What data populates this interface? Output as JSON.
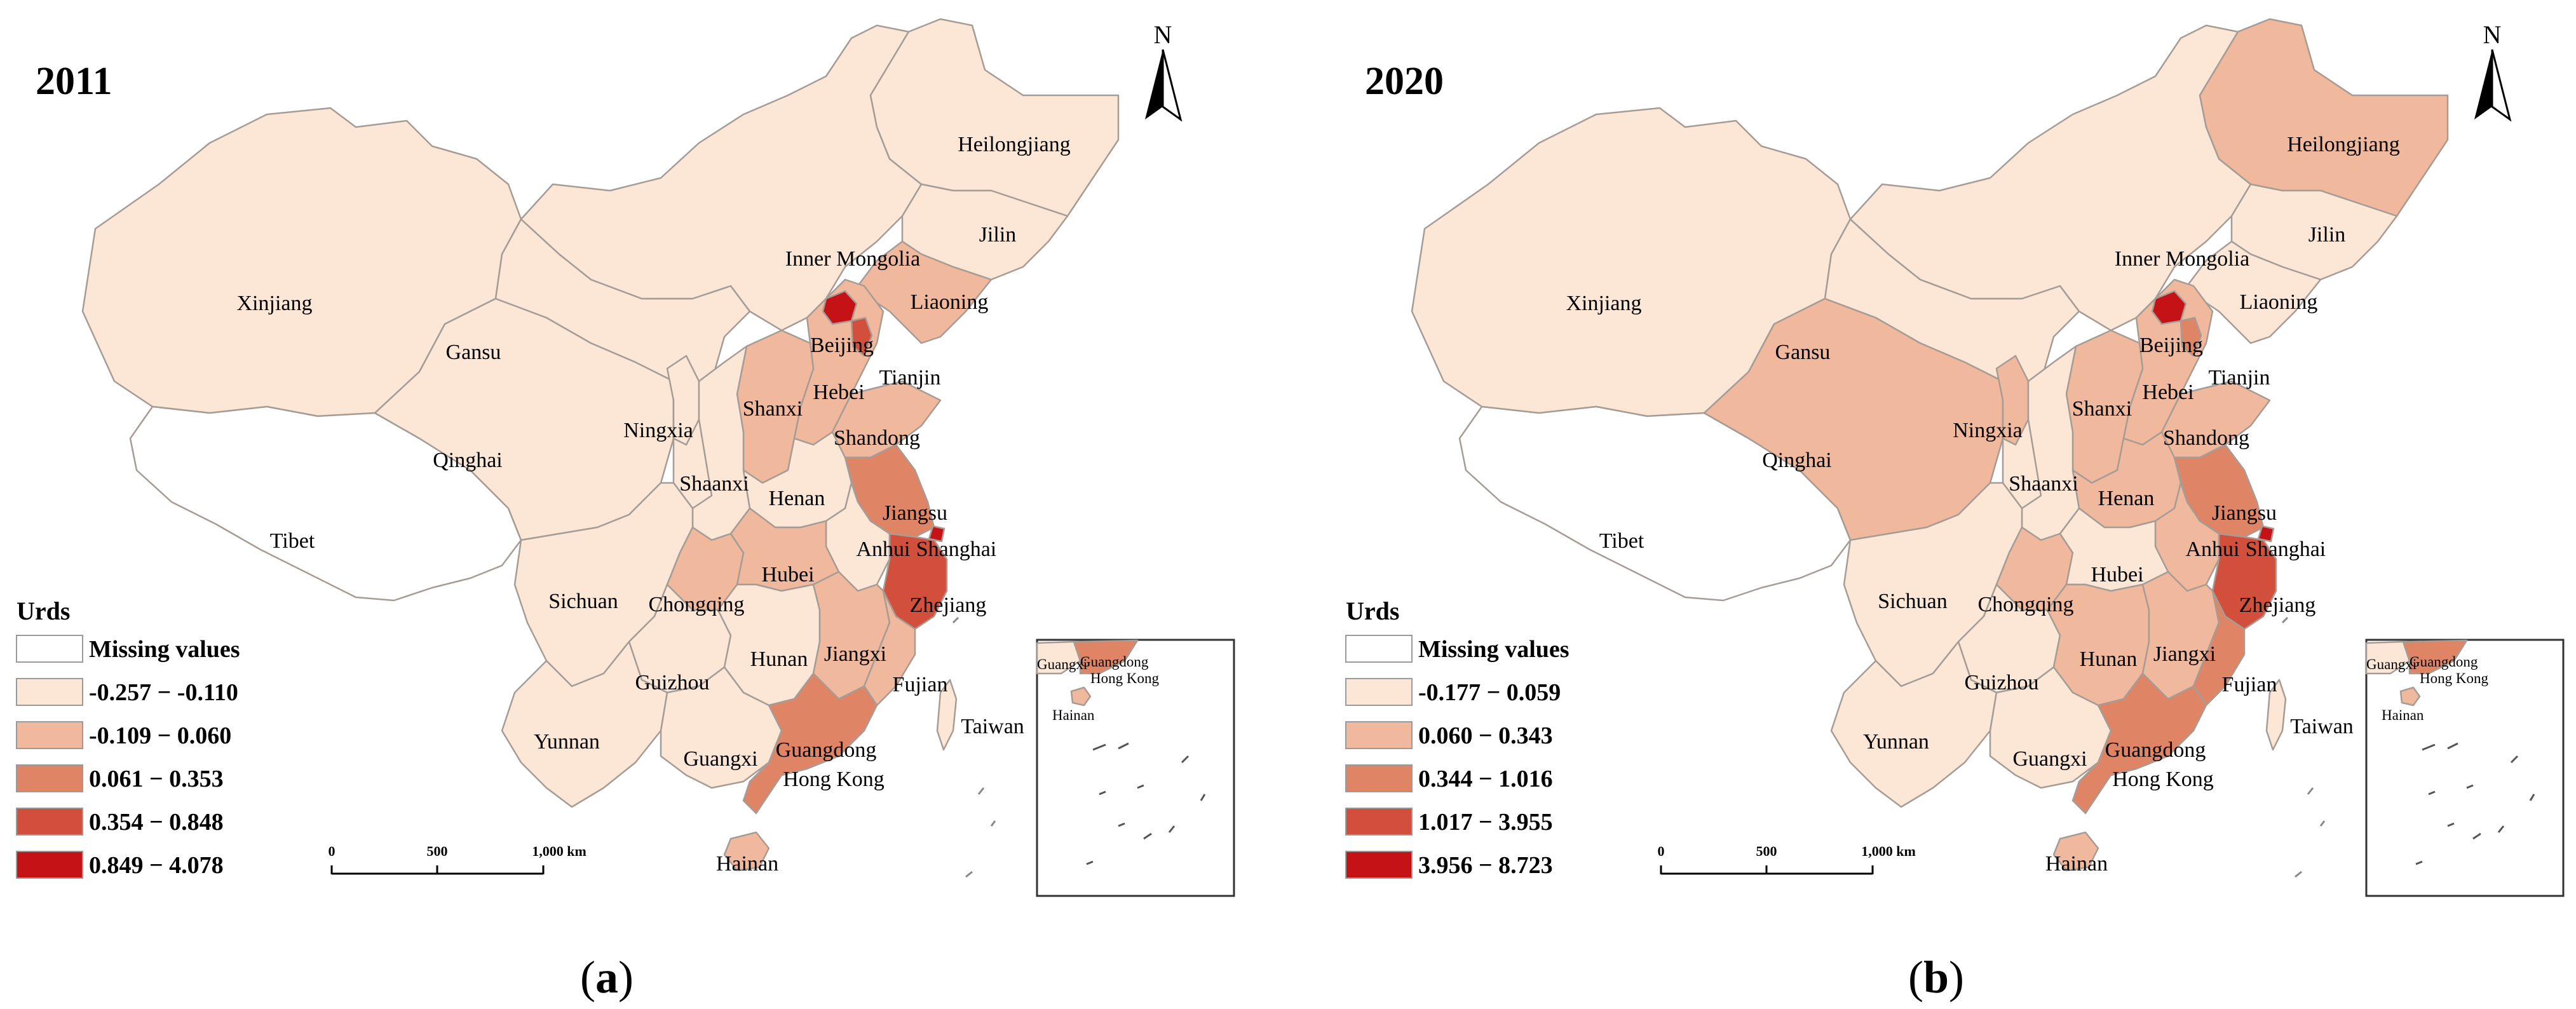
{
  "colors": {
    "missing": "#ffffff",
    "class1": "#fce6d6",
    "class2": "#f0b89c",
    "class3": "#e08466",
    "class4": "#d24f3c",
    "class5": "#c41217",
    "border": "#a69c96",
    "outline": "#9a9a9a"
  },
  "panels": [
    {
      "year": "2011",
      "caption_letter": "a",
      "legend": {
        "title": "Urds",
        "items": [
          {
            "label": "Missing values",
            "color": "missing"
          },
          {
            "label": "-0.257 − -0.110",
            "color": "class1"
          },
          {
            "label": "-0.109 − 0.060",
            "color": "class2"
          },
          {
            "label": "0.061 − 0.353",
            "color": "class3"
          },
          {
            "label": "0.354 − 0.848",
            "color": "class4"
          },
          {
            "label": "0.849 − 4.078",
            "color": "class5"
          }
        ]
      },
      "scale": {
        "t0": "0",
        "t1": "500",
        "t2": "1,000 km"
      },
      "provinces": {
        "xinjiang": "class1",
        "tibet": "missing",
        "qinghai": "class1",
        "gansu": "class1",
        "inner_mongolia": "class1",
        "heilongjiang": "class1",
        "jilin": "class1",
        "liaoning": "class2",
        "beijing": "class5",
        "tianjin": "class4",
        "hebei": "class2",
        "shanxi": "class2",
        "shandong": "class2",
        "ningxia": "class1",
        "shaanxi": "class1",
        "henan": "class1",
        "jiangsu": "class3",
        "anhui": "class1",
        "shanghai": "class5",
        "sichuan": "class1",
        "chongqing": "class2",
        "hubei": "class2",
        "zhejiang": "class4",
        "guizhou": "class1",
        "hunan": "class1",
        "jiangxi": "class2",
        "fujian": "class2",
        "yunnan": "class1",
        "guangxi": "class1",
        "guangdong": "class3",
        "hainan": "class2",
        "taiwan": "class1",
        "inset_guangdong": "class3",
        "inset_guangxi": "class1",
        "inset_hainan": "class2"
      }
    },
    {
      "year": "2020",
      "caption_letter": "b",
      "legend": {
        "title": "Urds",
        "items": [
          {
            "label": "Missing values",
            "color": "missing"
          },
          {
            "label": "-0.177 − 0.059",
            "color": "class1"
          },
          {
            "label": "0.060 − 0.343",
            "color": "class2"
          },
          {
            "label": "0.344 − 1.016",
            "color": "class3"
          },
          {
            "label": "1.017 − 3.955",
            "color": "class4"
          },
          {
            "label": "3.956 − 8.723",
            "color": "class5"
          }
        ]
      },
      "scale": {
        "t0": "0",
        "t1": "500",
        "t2": "1,000 km"
      },
      "provinces": {
        "xinjiang": "class1",
        "tibet": "missing",
        "qinghai": "class2",
        "gansu": "class1",
        "inner_mongolia": "class1",
        "heilongjiang": "class2",
        "jilin": "class1",
        "liaoning": "class1",
        "beijing": "class5",
        "tianjin": "class3",
        "hebei": "class2",
        "shanxi": "class2",
        "shandong": "class2",
        "ningxia": "class2",
        "shaanxi": "class1",
        "henan": "class2",
        "jiangsu": "class3",
        "anhui": "class2",
        "shanghai": "class5",
        "sichuan": "class1",
        "chongqing": "class2",
        "hubei": "class1",
        "zhejiang": "class4",
        "guizhou": "class1",
        "hunan": "class2",
        "jiangxi": "class2",
        "fujian": "class3",
        "yunnan": "class1",
        "guangxi": "class1",
        "guangdong": "class3",
        "hainan": "class2",
        "taiwan": "class1",
        "inset_guangdong": "class3",
        "inset_guangxi": "class1",
        "inset_hainan": "class2"
      }
    }
  ],
  "north_label": "N",
  "region_names": {
    "xinjiang": "Xinjiang",
    "tibet": "Tibet",
    "qinghai": "Qinghai",
    "gansu": "Gansu",
    "inner_mongolia": "Inner Mongolia",
    "heilongjiang": "Heilongjiang",
    "jilin": "Jilin",
    "liaoning": "Liaoning",
    "beijing": "Beijing",
    "tianjin": "Tianjin",
    "hebei": "Hebei",
    "shanxi": "Shanxi",
    "shandong": "Shandong",
    "ningxia": "Ningxia",
    "shaanxi": "Shaanxi",
    "henan": "Henan",
    "jiangsu": "Jiangsu",
    "anhui": "Anhui",
    "shanghai": "Shanghai",
    "sichuan": "Sichuan",
    "chongqing": "Chongqing",
    "hubei": "Hubei",
    "zhejiang": "Zhejiang",
    "guizhou": "Guizhou",
    "hunan": "Hunan",
    "jiangxi": "Jiangxi",
    "fujian": "Fujian",
    "yunnan": "Yunnan",
    "guangxi": "Guangxi",
    "guangdong": "Guangdong",
    "hong_kong": "Hong Kong",
    "hainan": "Hainan",
    "taiwan": "Taiwan"
  },
  "inset_names": {
    "guangxi": "Guangxi",
    "guangdong": "Guangdong",
    "hong_kong": "Hong Kong",
    "hainan": "Hainan"
  }
}
